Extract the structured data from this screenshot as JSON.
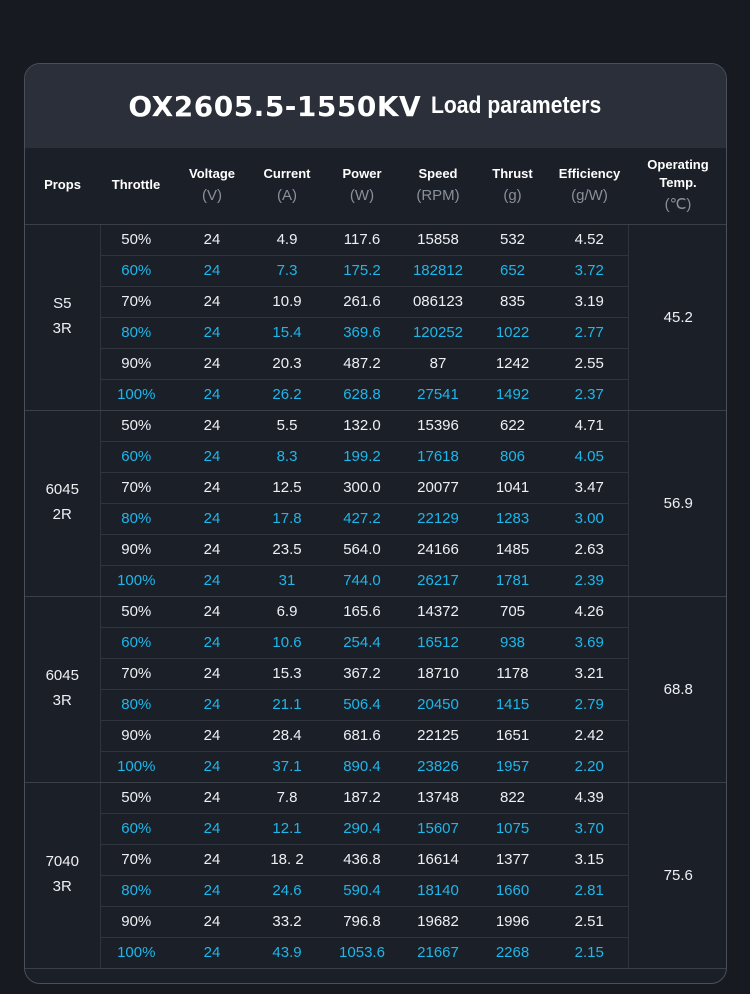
{
  "title": {
    "model": "OX2605.5-1550KV",
    "suffix": "Load parameters"
  },
  "headers": [
    {
      "label": "Props",
      "unit": ""
    },
    {
      "label": "Throttle",
      "unit": ""
    },
    {
      "label": "Voltage",
      "unit": "(V)"
    },
    {
      "label": "Current",
      "unit": "(A)"
    },
    {
      "label": "Power",
      "unit": "(W)"
    },
    {
      "label": "Speed",
      "unit": "(RPM)"
    },
    {
      "label": "Thrust",
      "unit": "(g)"
    },
    {
      "label": "Efficiency",
      "unit": "(g/W)"
    },
    {
      "label": "Operating Temp.",
      "unit": "(℃)"
    }
  ],
  "groups": [
    {
      "prop_line1": "S5",
      "prop_line2": "3R",
      "temp": "45.2",
      "rows": [
        [
          "50%",
          "24",
          "4.9",
          "117.6",
          "15858",
          "532",
          "4.52"
        ],
        [
          "60%",
          "24",
          "7.3",
          "175.2",
          "182812",
          "652",
          "3.72"
        ],
        [
          "70%",
          "24",
          "10.9",
          "261.6",
          "086123",
          "835",
          "3.19"
        ],
        [
          "80%",
          "24",
          "15.4",
          "369.6",
          "120252",
          "1022",
          "2.77"
        ],
        [
          "90%",
          "24",
          "20.3",
          "487.2",
          "87",
          "1242",
          "2.55"
        ],
        [
          "100%",
          "24",
          "26.2",
          "628.8",
          "27541",
          "1492",
          "2.37"
        ]
      ]
    },
    {
      "prop_line1": "6045",
      "prop_line2": "2R",
      "temp": "56.9",
      "rows": [
        [
          "50%",
          "24",
          "5.5",
          "132.0",
          "15396",
          "622",
          "4.71"
        ],
        [
          "60%",
          "24",
          "8.3",
          "199.2",
          "17618",
          "806",
          "4.05"
        ],
        [
          "70%",
          "24",
          "12.5",
          "300.0",
          "20077",
          "1041",
          "3.47"
        ],
        [
          "80%",
          "24",
          "17.8",
          "427.2",
          "22129",
          "1283",
          "3.00"
        ],
        [
          "90%",
          "24",
          "23.5",
          "564.0",
          "24166",
          "1485",
          "2.63"
        ],
        [
          "100%",
          "24",
          "31",
          "744.0",
          "26217",
          "1781",
          "2.39"
        ]
      ]
    },
    {
      "prop_line1": "6045",
      "prop_line2": "3R",
      "temp": "68.8",
      "rows": [
        [
          "50%",
          "24",
          "6.9",
          "165.6",
          "14372",
          "705",
          "4.26"
        ],
        [
          "60%",
          "24",
          "10.6",
          "254.4",
          "16512",
          "938",
          "3.69"
        ],
        [
          "70%",
          "24",
          "15.3",
          "367.2",
          "18710",
          "1178",
          "3.21"
        ],
        [
          "80%",
          "24",
          "21.1",
          "506.4",
          "20450",
          "1415",
          "2.79"
        ],
        [
          "90%",
          "24",
          "28.4",
          "681.6",
          "22125",
          "1651",
          "2.42"
        ],
        [
          "100%",
          "24",
          "37.1",
          "890.4",
          "23826",
          "1957",
          "2.20"
        ]
      ]
    },
    {
      "prop_line1": "7040",
      "prop_line2": "3R",
      "temp": "75.6",
      "rows": [
        [
          "50%",
          "24",
          "7.8",
          "187.2",
          "13748",
          "822",
          "4.39"
        ],
        [
          "60%",
          "24",
          "12.1",
          "290.4",
          "15607",
          "1075",
          "3.70"
        ],
        [
          "70%",
          "24",
          "18. 2",
          "436.8",
          "16614",
          "1377",
          "3.15"
        ],
        [
          "80%",
          "24",
          "24.6",
          "590.4",
          "18140",
          "1660",
          "2.81"
        ],
        [
          "90%",
          "24",
          "33.2",
          "796.8",
          "19682",
          "1996",
          "2.51"
        ],
        [
          "100%",
          "24",
          "43.9",
          "1053.6",
          "21667",
          "2268",
          "2.15"
        ]
      ]
    }
  ],
  "colors": {
    "highlight": "#1fb6ea",
    "background": "#171b21",
    "header_bar": "#2a2f39"
  }
}
